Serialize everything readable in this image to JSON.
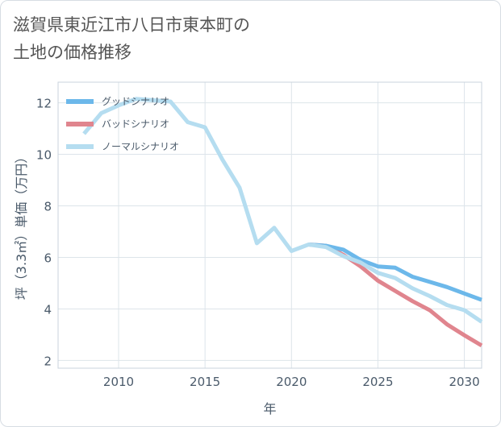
{
  "title": {
    "line1": "滋賀県東近江市八日市東本町の",
    "line2": "土地の価格推移"
  },
  "chart_data": {
    "type": "line",
    "xlabel": "年",
    "ylabel": "坪（3.3㎡）単価（万円）",
    "xlim": [
      2006.5,
      2031
    ],
    "ylim": [
      1.7,
      12.8
    ],
    "xticks": [
      2010,
      2015,
      2020,
      2025,
      2030
    ],
    "yticks": [
      2,
      4,
      6,
      8,
      10,
      12
    ],
    "grid": true,
    "legend_position": "top-left",
    "series": [
      {
        "name": "グッドシナリオ",
        "color": "#6cb8ea",
        "x": [
          2021,
          2022,
          2023,
          2024,
          2025,
          2026,
          2027,
          2028,
          2029,
          2030,
          2031
        ],
        "y": [
          6.5,
          6.45,
          6.3,
          5.9,
          5.65,
          5.6,
          5.25,
          5.05,
          4.85,
          4.6,
          4.35
        ]
      },
      {
        "name": "バッドシナリオ",
        "color": "#e0858e",
        "x": [
          2021,
          2022,
          2023,
          2024,
          2025,
          2026,
          2027,
          2028,
          2029,
          2030,
          2031
        ],
        "y": [
          6.5,
          6.45,
          6.1,
          5.65,
          5.1,
          4.7,
          4.3,
          3.95,
          3.4,
          2.98,
          2.58
        ]
      },
      {
        "name": "ノーマルシナリオ",
        "color": "#b5ddf0",
        "x": [
          2008,
          2009,
          2010,
          2011,
          2012,
          2013,
          2014,
          2015,
          2016,
          2017,
          2018,
          2019,
          2020,
          2021,
          2022,
          2023,
          2024,
          2025,
          2026,
          2027,
          2028,
          2029,
          2030,
          2031
        ],
        "y": [
          10.8,
          11.6,
          11.9,
          12.15,
          12.1,
          12.05,
          11.25,
          11.05,
          9.8,
          8.7,
          6.55,
          7.15,
          6.25,
          6.5,
          6.4,
          6.05,
          5.8,
          5.4,
          5.2,
          4.8,
          4.5,
          4.15,
          3.95,
          3.5
        ]
      }
    ]
  }
}
